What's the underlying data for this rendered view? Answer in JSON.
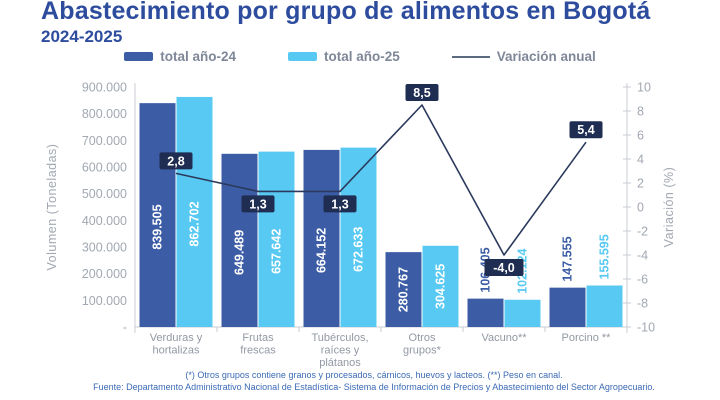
{
  "header": {
    "title": "Abastecimiento por grupo de alimentos en Bogotá",
    "subtitle": "2024-2025"
  },
  "colors": {
    "title_blue": "#2D4C9E",
    "bar_2024": "#3C5DA6",
    "bar_2025": "#58C9F2",
    "variation_line": "#2B3A5C",
    "variation_box": "#1F2D52",
    "axis_gray": "#C9CDD4",
    "tick_gray": "#A2A8B2",
    "category_gray": "#9298A3",
    "footnote_blue": "#3B6AB5"
  },
  "chart_data": {
    "type": "bar+line combo",
    "title": "Abastecimiento por grupo de alimentos en Bogotá 2024-2025",
    "categories": [
      [
        "Verduras y",
        "hortalizas"
      ],
      [
        "Frutas",
        "frescas"
      ],
      [
        "Tubérculos,",
        "raíces y",
        "plátanos"
      ],
      [
        "Otros",
        "grupos*"
      ],
      [
        "Vacuno**"
      ],
      [
        "Porcino **"
      ]
    ],
    "series": [
      {
        "name": "total año-24",
        "color": "#3C5DA6",
        "values": [
          839505,
          649489,
          664152,
          280767,
          106405,
          147555
        ],
        "labels": [
          "839.505",
          "649.489",
          "664.152",
          "280.767",
          "106.405",
          "147.555"
        ]
      },
      {
        "name": "total año-25",
        "color": "#58C9F2",
        "values": [
          862702,
          657642,
          672633,
          304625,
          102124,
          155595
        ],
        "labels": [
          "862.702",
          "657.642",
          "672.633",
          "304.625",
          "102.124",
          "155.595"
        ]
      }
    ],
    "line": {
      "name": "Variación anual",
      "color": "#2B3A5C",
      "values": [
        2.8,
        1.3,
        1.3,
        8.5,
        -4.0,
        5.4
      ],
      "labels": [
        "2,8",
        "1,3",
        "1,3",
        "8,5",
        "-4,0",
        "5,4"
      ],
      "label_pos": [
        "above",
        "below",
        "below",
        "above",
        "below",
        "above"
      ]
    },
    "left_axis": {
      "title": "Volumen (Toneladas)",
      "ticks": [
        "900.000",
        "800.000",
        "700.000",
        "600.000",
        "500.000",
        "400.000",
        "300.000",
        "200.000",
        "100.000",
        "-"
      ],
      "tick_values": [
        900000,
        800000,
        700000,
        600000,
        500000,
        400000,
        300000,
        200000,
        100000,
        0
      ],
      "min": 0,
      "max": 900000
    },
    "right_axis": {
      "title": "Variación (%)",
      "ticks": [
        "10",
        "8",
        "6",
        "4",
        "2",
        "0",
        "-2",
        "-4",
        "-6",
        "-8",
        "-10"
      ],
      "tick_values": [
        10,
        8,
        6,
        4,
        2,
        0,
        -2,
        -4,
        -6,
        -8,
        -10
      ],
      "min": -10,
      "max": 10
    },
    "label_inside_threshold": 200000,
    "grid": false,
    "legend_position": "top"
  },
  "footnotes": {
    "line1": "(*) Otros grupos contiene granos y procesados, cárnicos, huevos y lacteos. (**) Peso en canal.",
    "line2": "Fuente: Departamento Administrativo Nacional de Estadística- Sistema de Información de Precios y Abastecimiento del Sector Agropecuario."
  }
}
